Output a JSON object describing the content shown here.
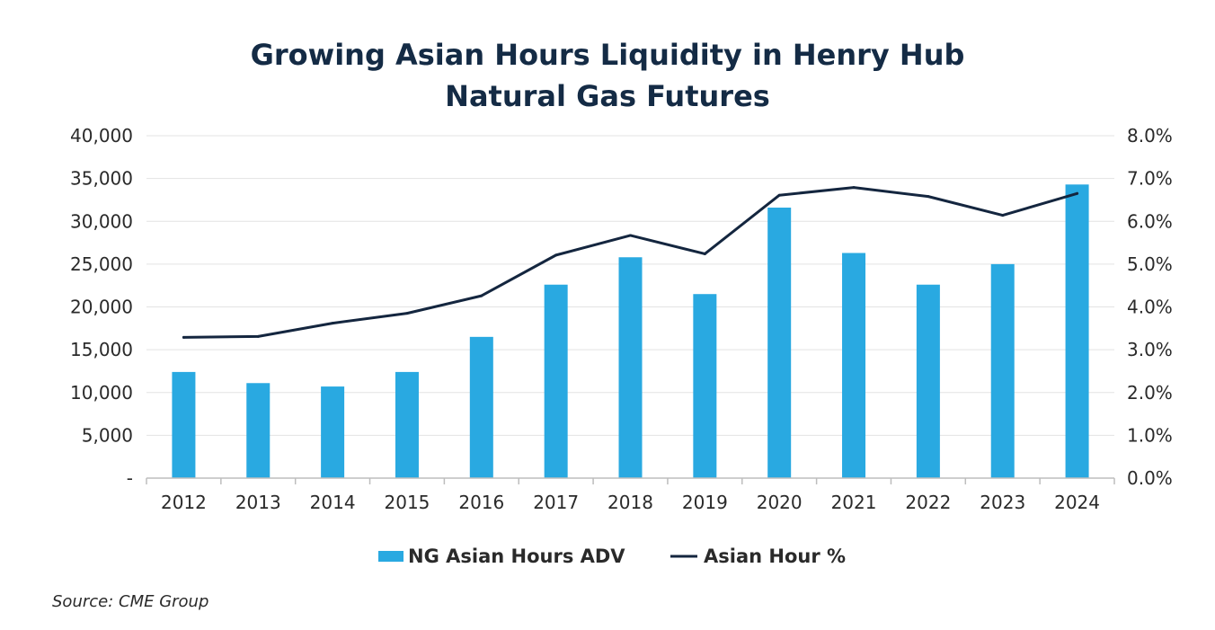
{
  "title_line1": "Growing Asian Hours Liquidity in Henry Hub",
  "title_line2": "Natural Gas Futures",
  "source": "Source: CME Group",
  "colors": {
    "bar": "#29a9e1",
    "line": "#14263f",
    "grid": "#e3e3e3",
    "axis": "#bdbdbd",
    "title": "#142b45"
  },
  "chart_data": {
    "type": "bar",
    "categories": [
      "2012",
      "2013",
      "2014",
      "2015",
      "2016",
      "2017",
      "2018",
      "2019",
      "2020",
      "2021",
      "2022",
      "2023",
      "2024"
    ],
    "series": [
      {
        "name": "NG Asian Hours ADV",
        "type": "bar",
        "axis": "left",
        "values": [
          12400,
          11100,
          10700,
          12400,
          16500,
          22600,
          25800,
          21500,
          31600,
          26300,
          22600,
          25000,
          34300
        ]
      },
      {
        "name": "Asian Hour %",
        "type": "line",
        "axis": "right",
        "values": [
          3.29,
          3.31,
          3.62,
          3.85,
          4.26,
          5.21,
          5.67,
          5.24,
          6.61,
          6.79,
          6.58,
          6.14,
          6.65
        ]
      }
    ],
    "left_axis": {
      "ylim": [
        0,
        40000
      ],
      "ticks": [
        0,
        5000,
        10000,
        15000,
        20000,
        25000,
        30000,
        35000,
        40000
      ],
      "tick_labels": [
        "-",
        "5,000",
        "10,000",
        "15,000",
        "20,000",
        "25,000",
        "30,000",
        "35,000",
        "40,000"
      ]
    },
    "right_axis": {
      "ylim": [
        0,
        8
      ],
      "ticks": [
        0,
        1,
        2,
        3,
        4,
        5,
        6,
        7,
        8
      ],
      "tick_labels": [
        "0.0%",
        "1.0%",
        "2.0%",
        "3.0%",
        "4.0%",
        "5.0%",
        "6.0%",
        "7.0%",
        "8.0%"
      ]
    },
    "grid": true,
    "legend_position": "bottom-center"
  }
}
